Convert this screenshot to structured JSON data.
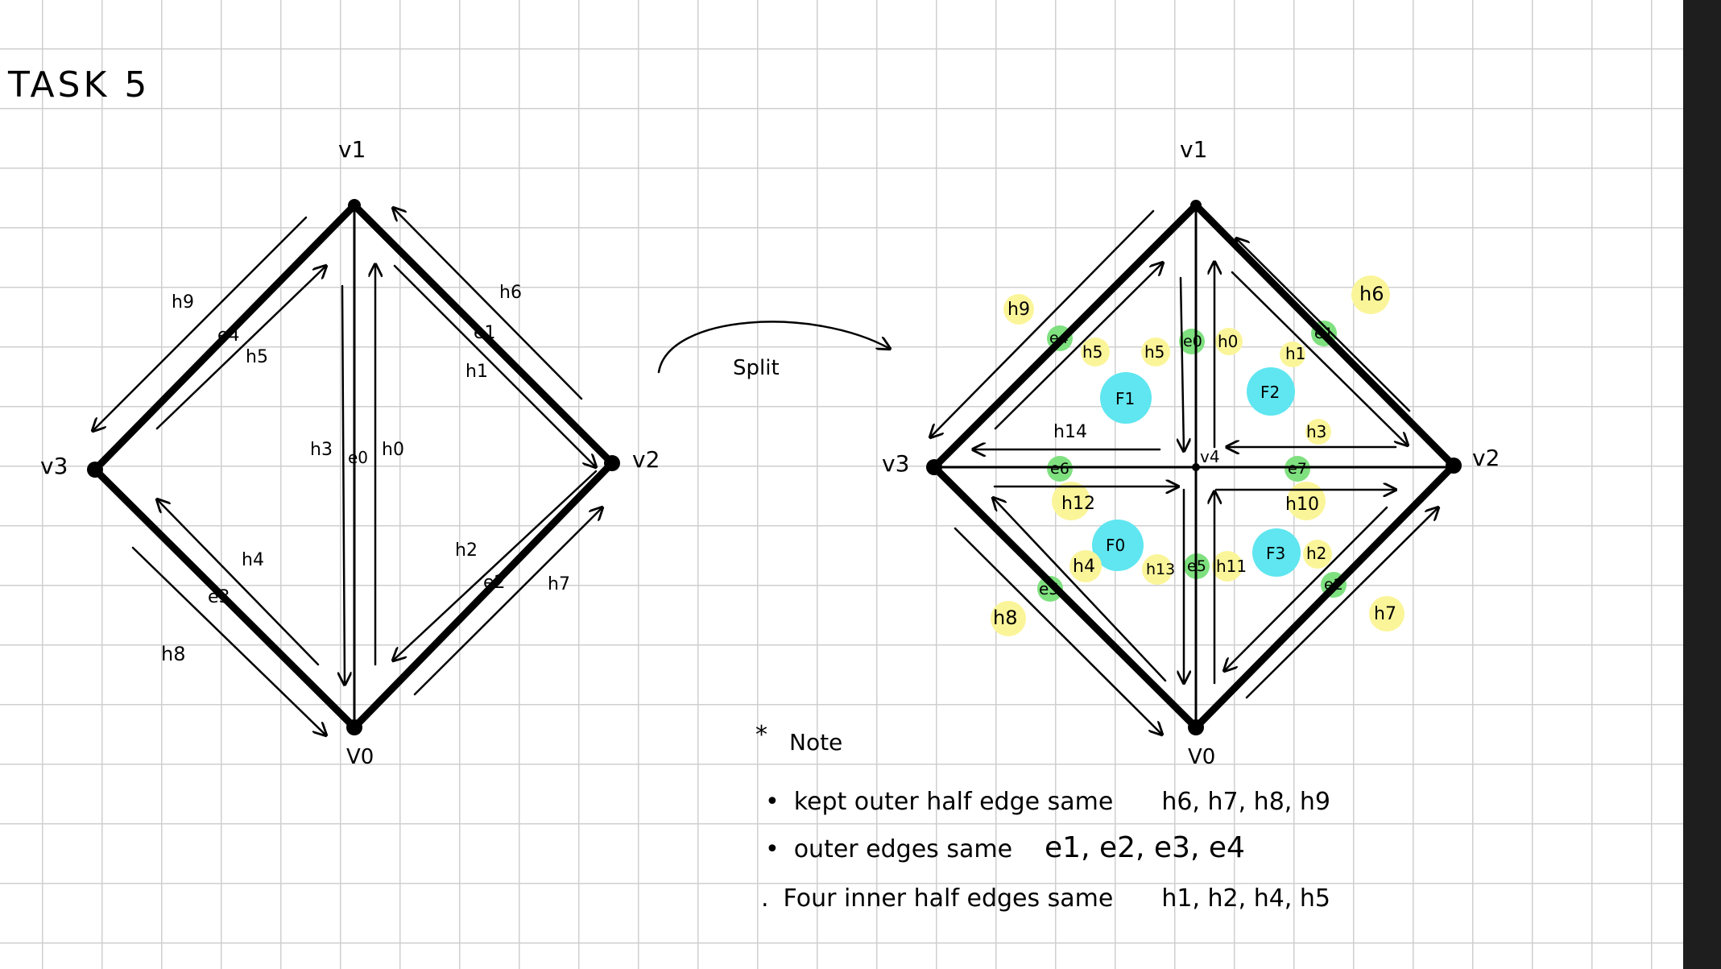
{
  "title": "TASK 5",
  "arrow_label": "Split",
  "colors": {
    "ink": "#000000",
    "grid": "#cfcfcf",
    "highlight_yellow": "#fbf59a",
    "highlight_green": "#7fe07f",
    "highlight_cyan": "#5fe6f0",
    "sidebar": "#1e1e1e"
  },
  "left_diagram": {
    "vertices": {
      "v0": "V0",
      "v1": "v1",
      "v2": "v2",
      "v3": "v3"
    },
    "edges": {
      "e0": "e0",
      "e1": "e1",
      "e2": "e2",
      "e3": "e3",
      "e4": "e4"
    },
    "half_edges": {
      "h0": "h0",
      "h1": "h1",
      "h2": "h2",
      "h3": "h3",
      "h4": "h4",
      "h5": "h5",
      "h6": "h6",
      "h7": "h7",
      "h8": "h8",
      "h9": "h9"
    }
  },
  "right_diagram": {
    "vertices": {
      "v0": "V0",
      "v1": "v1",
      "v2": "v2",
      "v3": "v3",
      "v4": "v4"
    },
    "edges": {
      "e0": "e0",
      "e1": "e1",
      "e2": "e2",
      "e3": "e3",
      "e4": "e4",
      "e5": "e5",
      "e6": "e6",
      "e7": "e7"
    },
    "half_edges": {
      "h0": "h0",
      "h1": "h1",
      "h2": "h2",
      "h3": "h3",
      "h4": "h4",
      "h5": "h5",
      "h6": "h6",
      "h7": "h7",
      "h8": "h8",
      "h9": "h9",
      "h10": "h10",
      "h11": "h11",
      "h12": "h12",
      "h13": "h13",
      "h14": "h14",
      "h15": "h5"
    },
    "faces": {
      "f0": "F0",
      "f1": "F1",
      "f2": "F2",
      "f3": "F3"
    }
  },
  "note": {
    "heading": "Note",
    "items": [
      {
        "bullet": "•",
        "text": "kept outer half edge same",
        "values": "h6, h7, h8, h9"
      },
      {
        "bullet": "•",
        "text": "outer edges same",
        "values": "e1, e2, e3, e4"
      },
      {
        "bullet": ".",
        "text": "Four inner half edges same",
        "values": "h1, h2, h4, h5"
      }
    ]
  }
}
